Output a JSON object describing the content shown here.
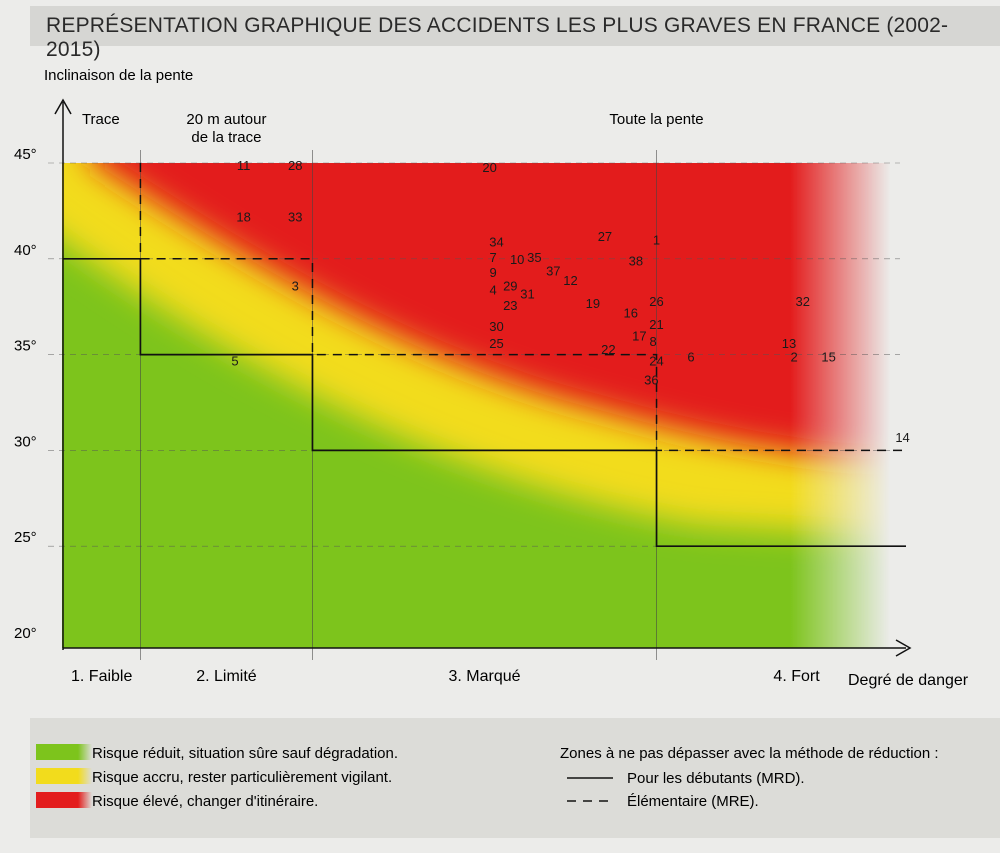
{
  "title": "REPRÉSENTATION GRAPHIQUE DES ACCIDENTS LES PLUS GRAVES EN FRANCE (2002-2015)",
  "colors": {
    "green": "#7dc41c",
    "yellow": "#f2dc1c",
    "red": "#e31d1d",
    "line": "#111111"
  },
  "chart_data": {
    "type": "scatter",
    "title": "REPRÉSENTATION GRAPHIQUE DES ACCIDENTS LES PLUS GRAVES EN FRANCE (2002-2015)",
    "ylabel": "Inclinaison de la pente",
    "xlabel": "Degré de danger",
    "ylim": [
      20,
      45
    ],
    "y_ticks": [
      "20°",
      "25°",
      "30°",
      "35°",
      "40°",
      "45°"
    ],
    "y_tick_values": [
      20,
      25,
      30,
      35,
      40,
      45
    ],
    "xlim": [
      0,
      4.9
    ],
    "x_categories": [
      "1. Faible",
      "2. Limité",
      "3. Marqué",
      "4. Fort"
    ],
    "x_category_bounds": [
      [
        0,
        0.45
      ],
      [
        0.45,
        1.45
      ],
      [
        1.45,
        3.45
      ],
      [
        3.45,
        4.9
      ]
    ],
    "zone_headers": [
      {
        "text": "Trace",
        "x": 0.22
      },
      {
        "text": "20 m autour",
        "x": 0.95
      },
      {
        "text": "de la trace",
        "x": 0.95
      },
      {
        "text": "Toute la pente",
        "x": 3.45
      }
    ],
    "grid_y": true,
    "risk_zones": [
      {
        "name": "Risque réduit, situation sûre sauf dégradation.",
        "color": "#7dc41c"
      },
      {
        "name": "Risque accru, rester particulièrement vigilant.",
        "color": "#f2dc1c"
      },
      {
        "name": "Risque élevé, changer d'itinéraire.",
        "color": "#e31d1d"
      }
    ],
    "limit_lines": {
      "solid_MRD": [
        [
          0,
          40
        ],
        [
          0.45,
          40
        ],
        [
          0.45,
          35
        ],
        [
          1.45,
          35
        ],
        [
          1.45,
          30
        ],
        [
          3.45,
          30
        ],
        [
          3.45,
          25
        ],
        [
          4.9,
          25
        ]
      ],
      "dashed_MRE": [
        [
          0.45,
          45
        ],
        [
          0.45,
          40
        ],
        [
          1.45,
          40
        ],
        [
          1.45,
          35
        ],
        [
          3.45,
          35
        ],
        [
          3.45,
          30
        ],
        [
          4.9,
          30
        ]
      ]
    },
    "accidents": [
      {
        "id": "1",
        "x": 3.45,
        "y": 41.0
      },
      {
        "id": "2",
        "x": 4.25,
        "y": 34.9
      },
      {
        "id": "3",
        "x": 1.35,
        "y": 38.6
      },
      {
        "id": "4",
        "x": 2.5,
        "y": 38.4
      },
      {
        "id": "5",
        "x": 1.0,
        "y": 34.7
      },
      {
        "id": "6",
        "x": 3.65,
        "y": 34.9
      },
      {
        "id": "7",
        "x": 2.5,
        "y": 40.1
      },
      {
        "id": "8",
        "x": 3.43,
        "y": 35.7
      },
      {
        "id": "9",
        "x": 2.5,
        "y": 39.3
      },
      {
        "id": "10",
        "x": 2.64,
        "y": 40.0
      },
      {
        "id": "11",
        "x": 1.05,
        "y": 44.9
      },
      {
        "id": "12",
        "x": 2.95,
        "y": 38.9
      },
      {
        "id": "13",
        "x": 4.22,
        "y": 35.6
      },
      {
        "id": "14",
        "x": 4.88,
        "y": 30.7
      },
      {
        "id": "15",
        "x": 4.45,
        "y": 34.9
      },
      {
        "id": "16",
        "x": 3.3,
        "y": 37.2
      },
      {
        "id": "17",
        "x": 3.35,
        "y": 36.0
      },
      {
        "id": "18",
        "x": 1.05,
        "y": 42.2
      },
      {
        "id": "19",
        "x": 3.08,
        "y": 37.7
      },
      {
        "id": "20",
        "x": 2.48,
        "y": 44.8
      },
      {
        "id": "21",
        "x": 3.45,
        "y": 36.6
      },
      {
        "id": "22",
        "x": 3.17,
        "y": 35.3
      },
      {
        "id": "23",
        "x": 2.6,
        "y": 37.6
      },
      {
        "id": "24",
        "x": 3.45,
        "y": 34.7
      },
      {
        "id": "25",
        "x": 2.52,
        "y": 35.6
      },
      {
        "id": "26",
        "x": 3.45,
        "y": 37.8
      },
      {
        "id": "27",
        "x": 3.15,
        "y": 41.2
      },
      {
        "id": "28",
        "x": 1.35,
        "y": 44.9
      },
      {
        "id": "29",
        "x": 2.6,
        "y": 38.6
      },
      {
        "id": "30",
        "x": 2.52,
        "y": 36.5
      },
      {
        "id": "31",
        "x": 2.7,
        "y": 38.2
      },
      {
        "id": "32",
        "x": 4.3,
        "y": 37.8
      },
      {
        "id": "33",
        "x": 1.35,
        "y": 42.2
      },
      {
        "id": "34",
        "x": 2.52,
        "y": 40.9
      },
      {
        "id": "35",
        "x": 2.74,
        "y": 40.1
      },
      {
        "id": "36",
        "x": 3.42,
        "y": 33.7
      },
      {
        "id": "37",
        "x": 2.85,
        "y": 39.4
      },
      {
        "id": "38",
        "x": 3.33,
        "y": 39.9
      }
    ]
  },
  "legend": {
    "items": [
      {
        "label": "Risque réduit, situation sûre sauf dégradation.",
        "color": "#7dc41c"
      },
      {
        "label": "Risque accru, rester particulièrement vigilant.",
        "color": "#f2dc1c"
      },
      {
        "label": "Risque élevé, changer d'itinéraire.",
        "color": "#e31d1d"
      }
    ],
    "zones_title": "Zones à ne pas dépasser avec la méthode de réduction :",
    "line_items": [
      {
        "style": "solid",
        "label": "Pour les débutants (MRD)."
      },
      {
        "style": "dashed",
        "label": "Élémentaire (MRE)."
      }
    ]
  }
}
